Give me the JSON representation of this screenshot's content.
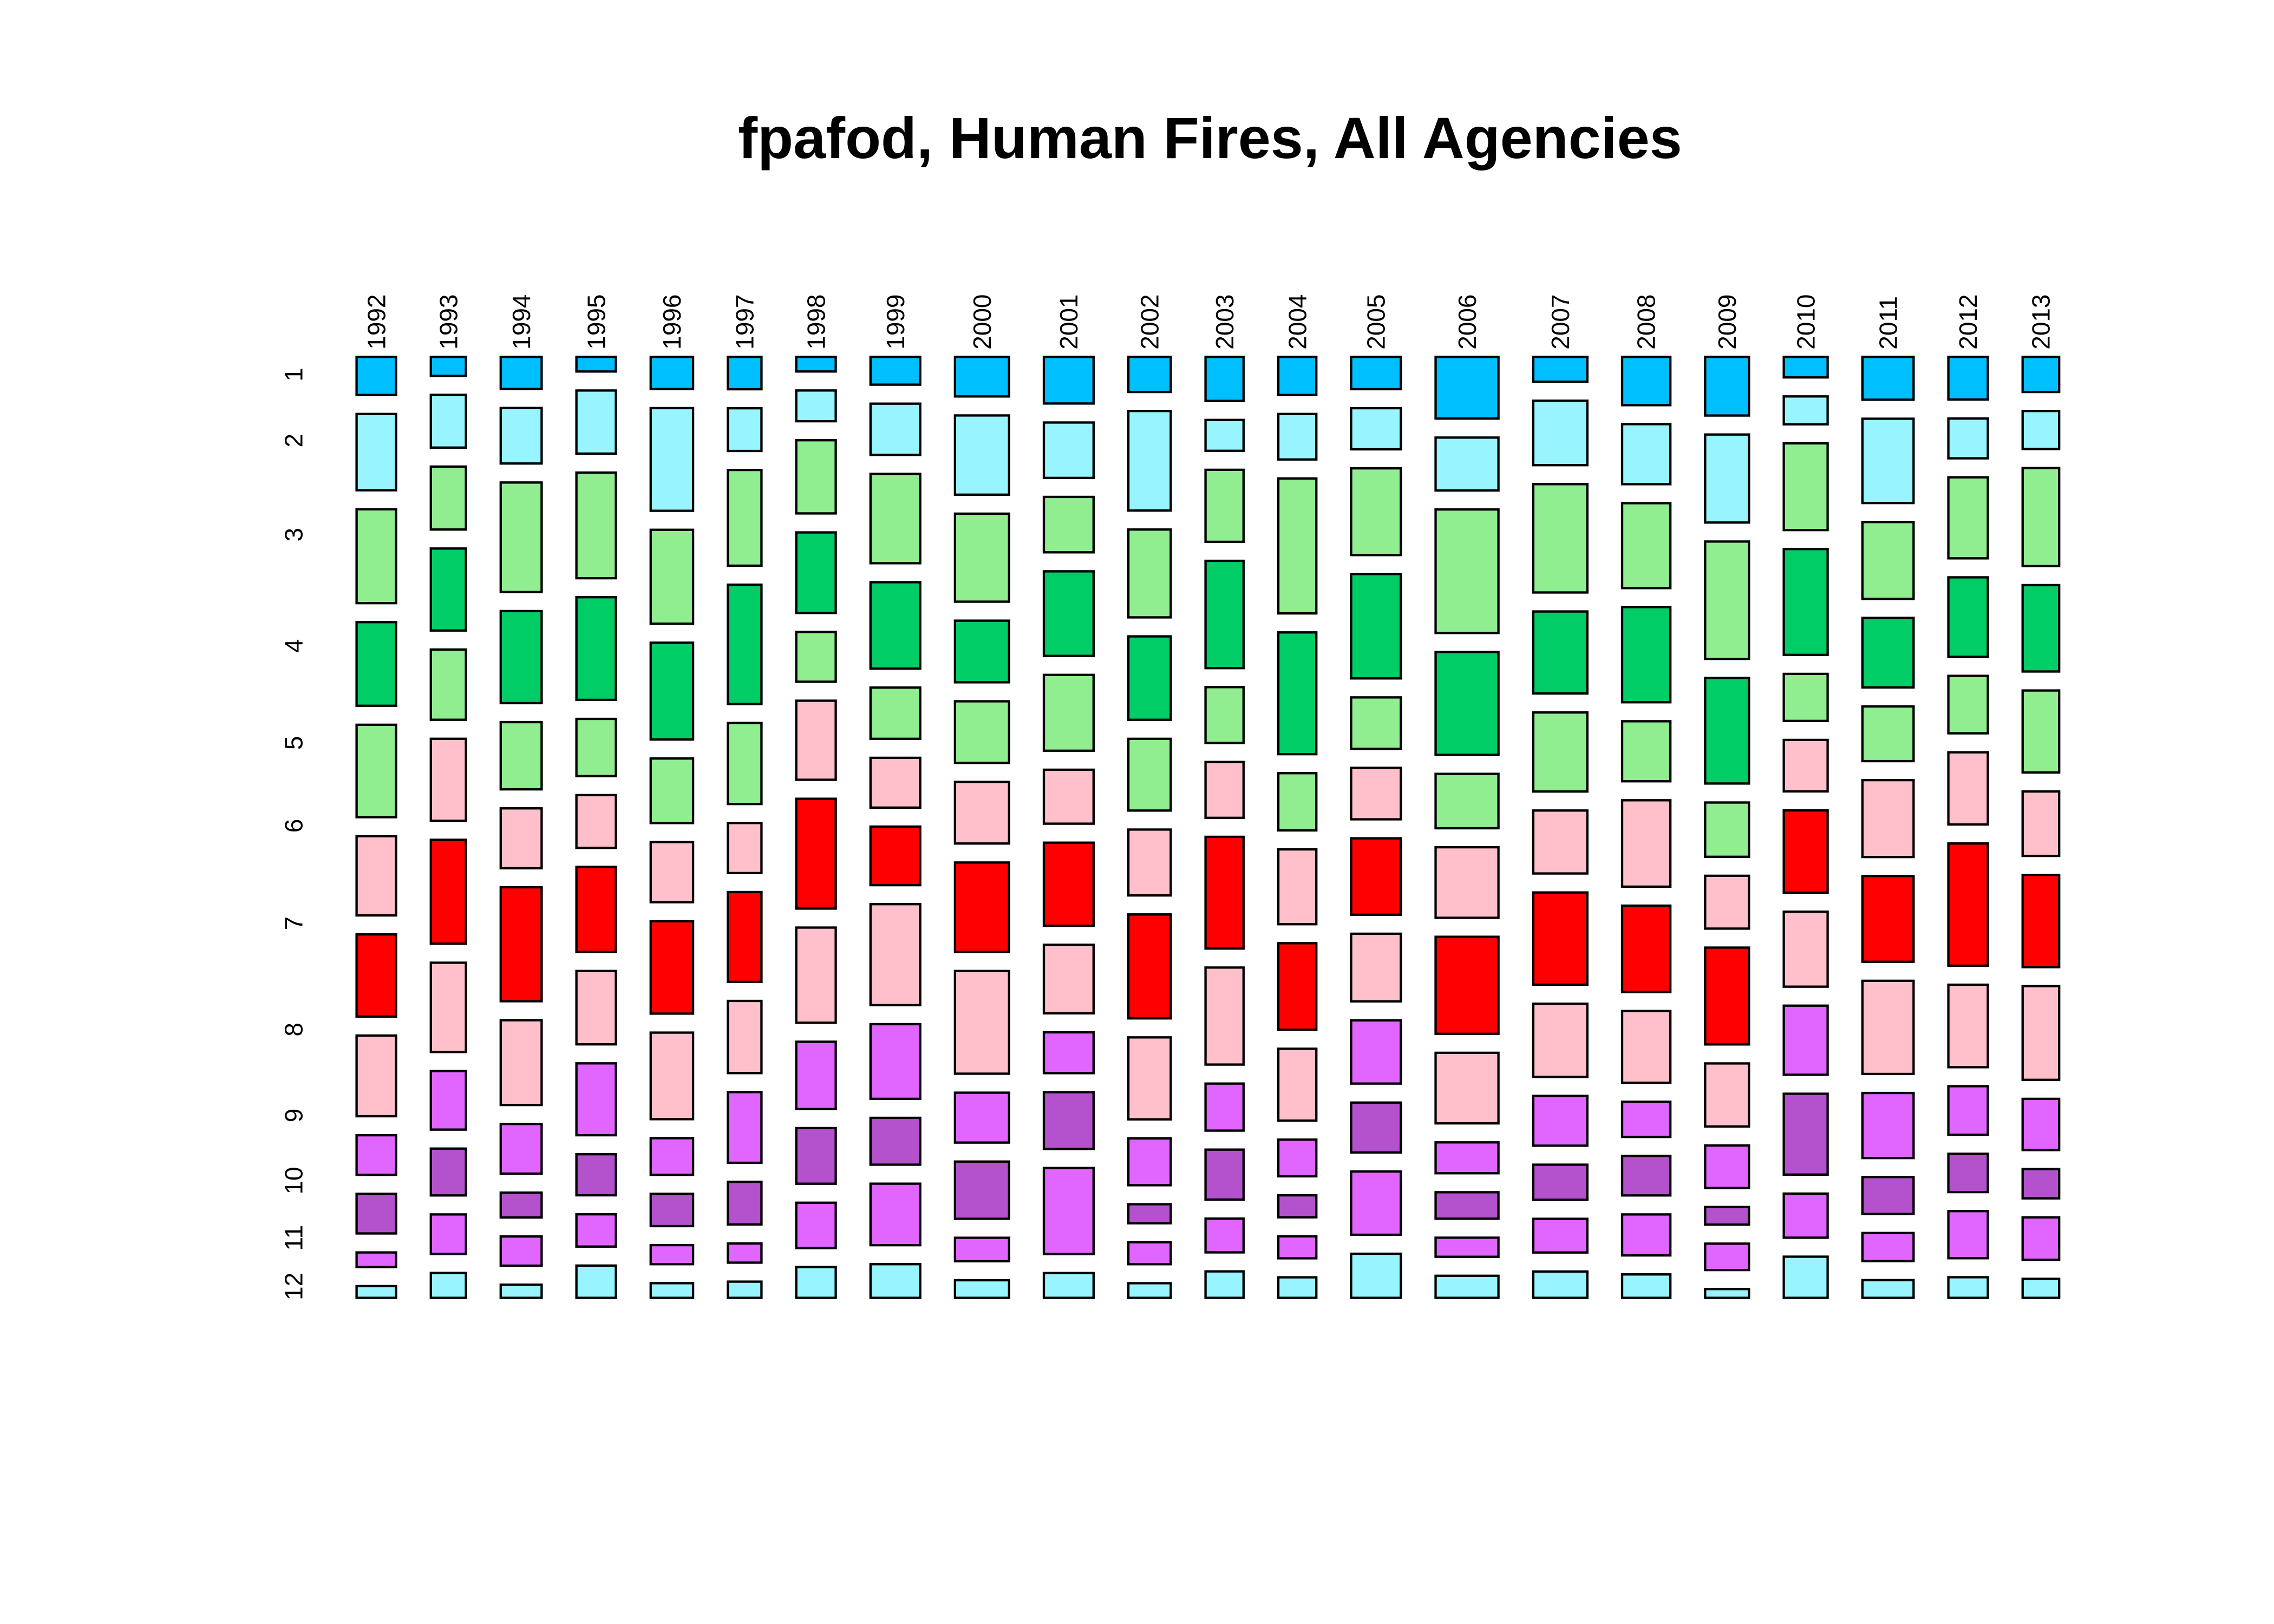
{
  "chart_data": {
    "type": "mosaic",
    "title": "fpafod, Human Fires, All Agencies",
    "xlabel": "",
    "ylabel": "",
    "months": [
      "1",
      "2",
      "3",
      "4",
      "5",
      "6",
      "7",
      "8",
      "9",
      "10",
      "11",
      "12"
    ],
    "month_colors": [
      "#00BFFF",
      "#98F5FF",
      "#90EE90",
      "#00CD66",
      "#90EE90",
      "#FFC0CB",
      "#FF0000",
      "#FFC0CB",
      "#E066FF",
      "#B452CD",
      "#E066FF",
      "#98F5FF"
    ],
    "note": "column widths proportional to year totals (year_weight); cell heights proportional to month counts within year (month_counts, relative units)",
    "years": [
      {
        "year": "1992",
        "year_weight": 27,
        "month_counts": [
          26,
          52,
          64,
          57,
          63,
          54,
          56,
          55,
          27,
          27,
          10,
          8
        ]
      },
      {
        "year": "1993",
        "year_weight": 24,
        "month_counts": [
          13,
          36,
          43,
          56,
          48,
          56,
          71,
          61,
          40,
          32,
          27,
          17
        ]
      },
      {
        "year": "1994",
        "year_weight": 28,
        "month_counts": [
          22,
          38,
          75,
          63,
          46,
          41,
          78,
          58,
          34,
          17,
          20,
          9
        ]
      },
      {
        "year": "1995",
        "year_weight": 27,
        "month_counts": [
          10,
          43,
          72,
          70,
          39,
          36,
          58,
          50,
          49,
          28,
          22,
          22
        ]
      },
      {
        "year": "1996",
        "year_weight": 29,
        "month_counts": [
          22,
          70,
          64,
          66,
          44,
          41,
          63,
          59,
          25,
          22,
          13,
          10
        ]
      },
      {
        "year": "1997",
        "year_weight": 23,
        "month_counts": [
          22,
          29,
          65,
          81,
          55,
          34,
          61,
          49,
          48,
          29,
          13,
          11
        ]
      },
      {
        "year": "1998",
        "year_weight": 27,
        "month_counts": [
          10,
          21,
          50,
          55,
          34,
          54,
          75,
          65,
          46,
          38,
          31,
          21
        ]
      },
      {
        "year": "1999",
        "year_weight": 34,
        "month_counts": [
          19,
          35,
          61,
          59,
          35,
          34,
          40,
          69,
          51,
          32,
          42,
          23
        ]
      },
      {
        "year": "2000",
        "year_weight": 37,
        "month_counts": [
          27,
          54,
          60,
          42,
          42,
          42,
          61,
          70,
          34,
          39,
          16,
          12
        ]
      },
      {
        "year": "2001",
        "year_weight": 34,
        "month_counts": [
          32,
          38,
          38,
          58,
          52,
          37,
          57,
          47,
          28,
          39,
          59,
          17
        ]
      },
      {
        "year": "2002",
        "year_weight": 29,
        "month_counts": [
          24,
          68,
          60,
          57,
          49,
          45,
          71,
          56,
          32,
          13,
          15,
          10
        ]
      },
      {
        "year": "2003",
        "year_weight": 26,
        "month_counts": [
          30,
          21,
          49,
          73,
          38,
          38,
          76,
          66,
          32,
          34,
          23,
          18
        ]
      },
      {
        "year": "2004",
        "year_weight": 26,
        "month_counts": [
          26,
          31,
          92,
          83,
          39,
          51,
          59,
          49,
          25,
          15,
          15,
          14
        ]
      },
      {
        "year": "2005",
        "year_weight": 34,
        "month_counts": [
          22,
          28,
          59,
          71,
          35,
          35,
          52,
          46,
          43,
          34,
          43,
          30
        ]
      },
      {
        "year": "2006",
        "year_weight": 43,
        "month_counts": [
          42,
          36,
          84,
          70,
          37,
          48,
          66,
          48,
          21,
          18,
          13,
          15
        ]
      },
      {
        "year": "2007",
        "year_weight": 37,
        "month_counts": [
          17,
          44,
          74,
          56,
          54,
          43,
          63,
          50,
          34,
          24,
          23,
          18
        ]
      },
      {
        "year": "2008",
        "year_weight": 33,
        "month_counts": [
          33,
          41,
          58,
          65,
          41,
          59,
          59,
          49,
          24,
          27,
          28,
          16
        ]
      },
      {
        "year": "2009",
        "year_weight": 30,
        "month_counts": [
          40,
          60,
          80,
          72,
          37,
          36,
          66,
          43,
          29,
          12,
          18,
          6
        ]
      },
      {
        "year": "2010",
        "year_weight": 30,
        "month_counts": [
          14,
          19,
          59,
          72,
          32,
          35,
          56,
          51,
          47,
          55,
          30,
          28
        ]
      },
      {
        "year": "2011",
        "year_weight": 35,
        "month_counts": [
          29,
          57,
          52,
          47,
          37,
          52,
          58,
          63,
          44,
          25,
          19,
          12
        ]
      },
      {
        "year": "2012",
        "year_weight": 27,
        "month_counts": [
          29,
          27,
          55,
          54,
          39,
          49,
          83,
          56,
          33,
          26,
          32,
          14
        ]
      },
      {
        "year": "2013",
        "year_weight": 25,
        "month_counts": [
          24,
          26,
          67,
          59,
          56,
          44,
          63,
          64,
          35,
          20,
          29,
          13
        ]
      }
    ]
  }
}
